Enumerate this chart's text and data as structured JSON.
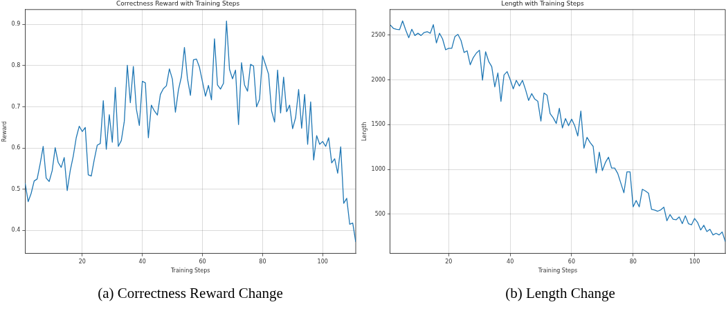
{
  "chart_data": [
    {
      "type": "line",
      "title": "Correctness Reward with Training Steps",
      "xlabel": "Training Steps",
      "ylabel": "Reward",
      "annotations": [
        "(a) Correctness Reward Change"
      ],
      "x": [
        1,
        2,
        3,
        4,
        5,
        6,
        7,
        8,
        9,
        10,
        11,
        12,
        13,
        14,
        15,
        16,
        17,
        18,
        19,
        20,
        21,
        22,
        23,
        24,
        25,
        26,
        27,
        28,
        29,
        30,
        31,
        32,
        33,
        34,
        35,
        36,
        37,
        38,
        39,
        40,
        41,
        42,
        43,
        44,
        45,
        46,
        47,
        48,
        49,
        50,
        51,
        52,
        53,
        54,
        55,
        56,
        57,
        58,
        59,
        60,
        61,
        62,
        63,
        64,
        65,
        66,
        67,
        68,
        69,
        70,
        71,
        72,
        73,
        74,
        75,
        76,
        77,
        78,
        79,
        80,
        81,
        82,
        83,
        84,
        85,
        86,
        87,
        88,
        89,
        90,
        91,
        92,
        93,
        94,
        95,
        96,
        97,
        98,
        99,
        100,
        101,
        102,
        103,
        104,
        105,
        106,
        107,
        108,
        109,
        110,
        111
      ],
      "series": [
        {
          "color": "#1f77b4",
          "values": [
            0.515,
            0.47,
            0.49,
            0.52,
            0.525,
            0.562,
            0.604,
            0.527,
            0.519,
            0.545,
            0.601,
            0.565,
            0.553,
            0.577,
            0.497,
            0.545,
            0.58,
            0.625,
            0.653,
            0.64,
            0.65,
            0.535,
            0.532,
            0.572,
            0.607,
            0.611,
            0.715,
            0.597,
            0.681,
            0.614,
            0.747,
            0.604,
            0.618,
            0.665,
            0.801,
            0.71,
            0.798,
            0.695,
            0.655,
            0.762,
            0.758,
            0.625,
            0.704,
            0.69,
            0.68,
            0.73,
            0.744,
            0.751,
            0.792,
            0.767,
            0.687,
            0.741,
            0.773,
            0.844,
            0.769,
            0.728,
            0.814,
            0.816,
            0.796,
            0.761,
            0.726,
            0.752,
            0.717,
            0.865,
            0.753,
            0.743,
            0.757,
            0.908,
            0.791,
            0.768,
            0.789,
            0.657,
            0.807,
            0.753,
            0.738,
            0.803,
            0.799,
            0.7,
            0.718,
            0.824,
            0.802,
            0.779,
            0.69,
            0.663,
            0.789,
            0.685,
            0.772,
            0.688,
            0.704,
            0.647,
            0.674,
            0.742,
            0.648,
            0.73,
            0.609,
            0.712,
            0.571,
            0.63,
            0.609,
            0.616,
            0.604,
            0.625,
            0.564,
            0.574,
            0.539,
            0.603,
            0.466,
            0.478,
            0.415,
            0.418,
            0.372
          ]
        }
      ],
      "xlim": [
        1,
        111
      ],
      "xticks": [
        20,
        40,
        60,
        80,
        100
      ],
      "ylim": [
        0.344,
        0.936
      ],
      "yticks": [
        0.4,
        0.5,
        0.6,
        0.7,
        0.8,
        0.9
      ],
      "grid": true
    },
    {
      "type": "line",
      "title": "Length with Training Steps",
      "xlabel": "Training Steps",
      "ylabel": "Length",
      "annotations": [
        "(b) Length Change"
      ],
      "x": [
        1,
        2,
        3,
        4,
        5,
        6,
        7,
        8,
        9,
        10,
        11,
        12,
        13,
        14,
        15,
        16,
        17,
        18,
        19,
        20,
        21,
        22,
        23,
        24,
        25,
        26,
        27,
        28,
        29,
        30,
        31,
        32,
        33,
        34,
        35,
        36,
        37,
        38,
        39,
        40,
        41,
        42,
        43,
        44,
        45,
        46,
        47,
        48,
        49,
        50,
        51,
        52,
        53,
        54,
        55,
        56,
        57,
        58,
        59,
        60,
        61,
        62,
        63,
        64,
        65,
        66,
        67,
        68,
        69,
        70,
        71,
        72,
        73,
        74,
        75,
        76,
        77,
        78,
        79,
        80,
        81,
        82,
        83,
        84,
        85,
        86,
        87,
        88,
        89,
        90,
        91,
        92,
        93,
        94,
        95,
        96,
        97,
        98,
        99,
        100,
        101,
        102,
        103,
        104,
        105,
        106,
        107,
        108,
        109,
        110
      ],
      "series": [
        {
          "color": "#1f77b4",
          "values": [
            2613,
            2575,
            2565,
            2560,
            2658,
            2558,
            2470,
            2565,
            2495,
            2520,
            2495,
            2528,
            2538,
            2520,
            2616,
            2412,
            2520,
            2457,
            2336,
            2352,
            2352,
            2482,
            2508,
            2440,
            2306,
            2324,
            2168,
            2248,
            2299,
            2331,
            1997,
            2314,
            2206,
            2148,
            1921,
            2077,
            1760,
            2055,
            2092,
            2004,
            1899,
            1994,
            1931,
            1994,
            1891,
            1770,
            1846,
            1785,
            1760,
            1539,
            1853,
            1828,
            1622,
            1576,
            1513,
            1682,
            1463,
            1568,
            1488,
            1561,
            1488,
            1373,
            1652,
            1237,
            1358,
            1300,
            1257,
            960,
            1192,
            986,
            1078,
            1136,
            1015,
            1015,
            955,
            847,
            739,
            973,
            973,
            582,
            653,
            582,
            778,
            759,
            734,
            553,
            546,
            533,
            548,
            578,
            427,
            495,
            444,
            437,
            469,
            394,
            482,
            394,
            381,
            452,
            406,
            323,
            376,
            306,
            331,
            268,
            286,
            268,
            301,
            193
          ]
        }
      ],
      "xlim": [
        1,
        110
      ],
      "xticks": [
        20,
        40,
        60,
        80,
        100
      ],
      "ylim": [
        60,
        2785
      ],
      "yticks": [
        500,
        1000,
        1500,
        2000,
        2500
      ],
      "grid": true
    }
  ]
}
